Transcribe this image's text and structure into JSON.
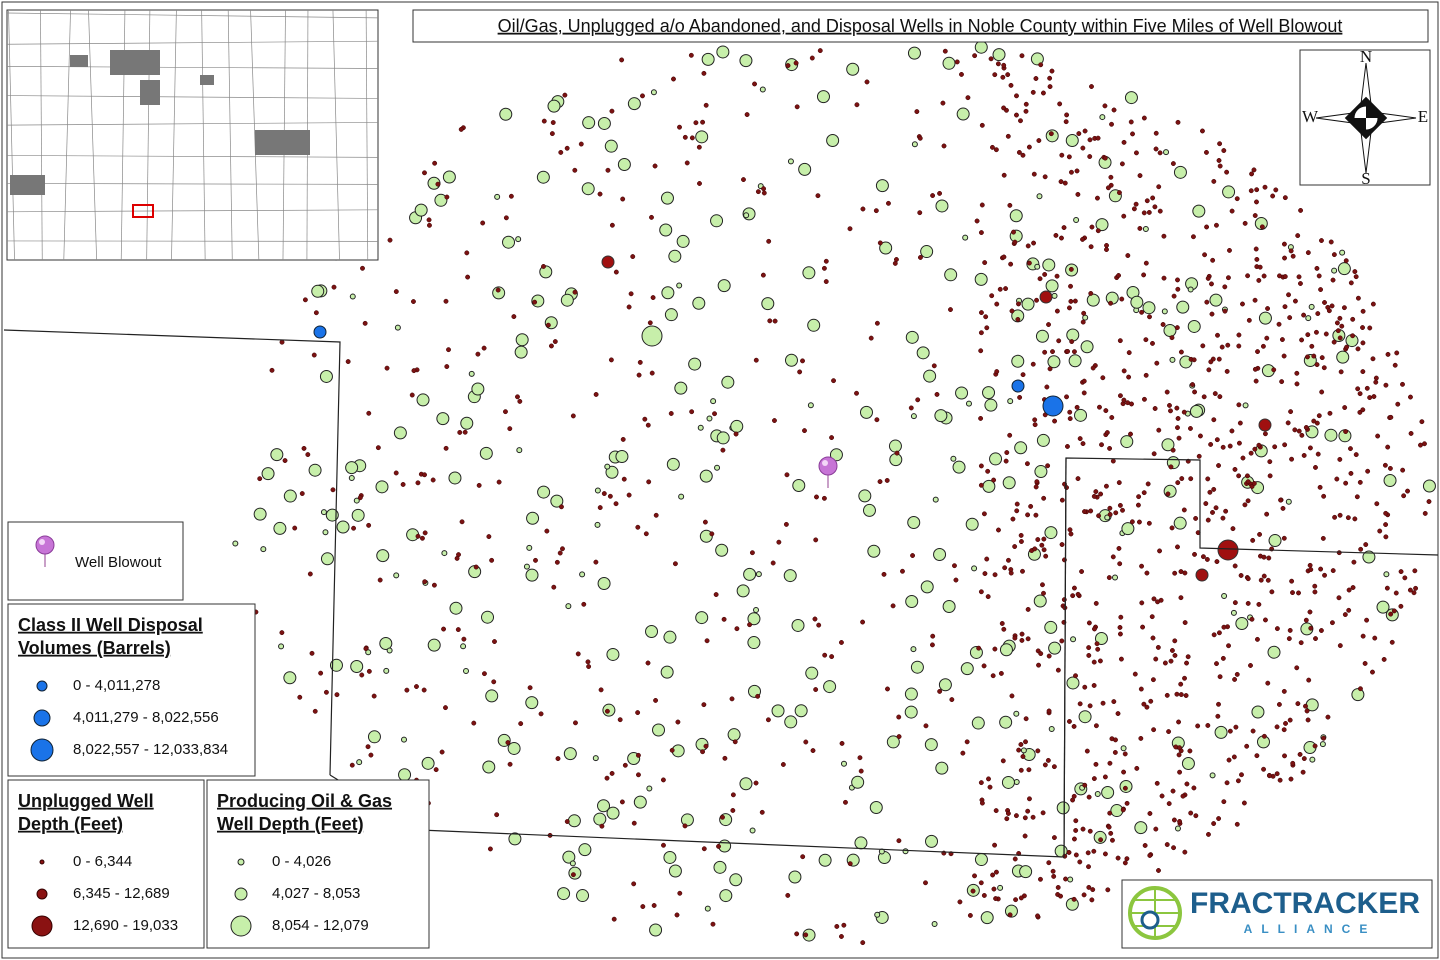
{
  "title": "Oil/Gas, Unplugged a/o Abandoned, and Disposal Wells in Noble County within Five Miles of Well Blowout",
  "compass": {
    "n": "N",
    "s": "S",
    "e": "E",
    "w": "W"
  },
  "legend": {
    "blowout": "Well Blowout",
    "disposal": {
      "title": [
        "Class II Well Disposal",
        "Volumes (Barrels)"
      ],
      "classes": [
        "0 - 4,011,278",
        "4,011,279 - 8,022,556",
        "8,022,557 - 12,033,834"
      ]
    },
    "unplugged": {
      "title": [
        "Unplugged Well",
        "Depth (Feet)"
      ],
      "classes": [
        "0 - 6,344",
        "6,345 - 12,689",
        "12,690 - 19,033"
      ]
    },
    "producing": {
      "title": [
        "Producing Oil & Gas",
        "Well Depth (Feet)"
      ],
      "classes": [
        "0 - 4,026",
        "4,027 - 8,053",
        "8,054 - 12,079"
      ]
    }
  },
  "logo": {
    "name": "FRACTRACKER",
    "sub": "ALLIANCE"
  }
}
